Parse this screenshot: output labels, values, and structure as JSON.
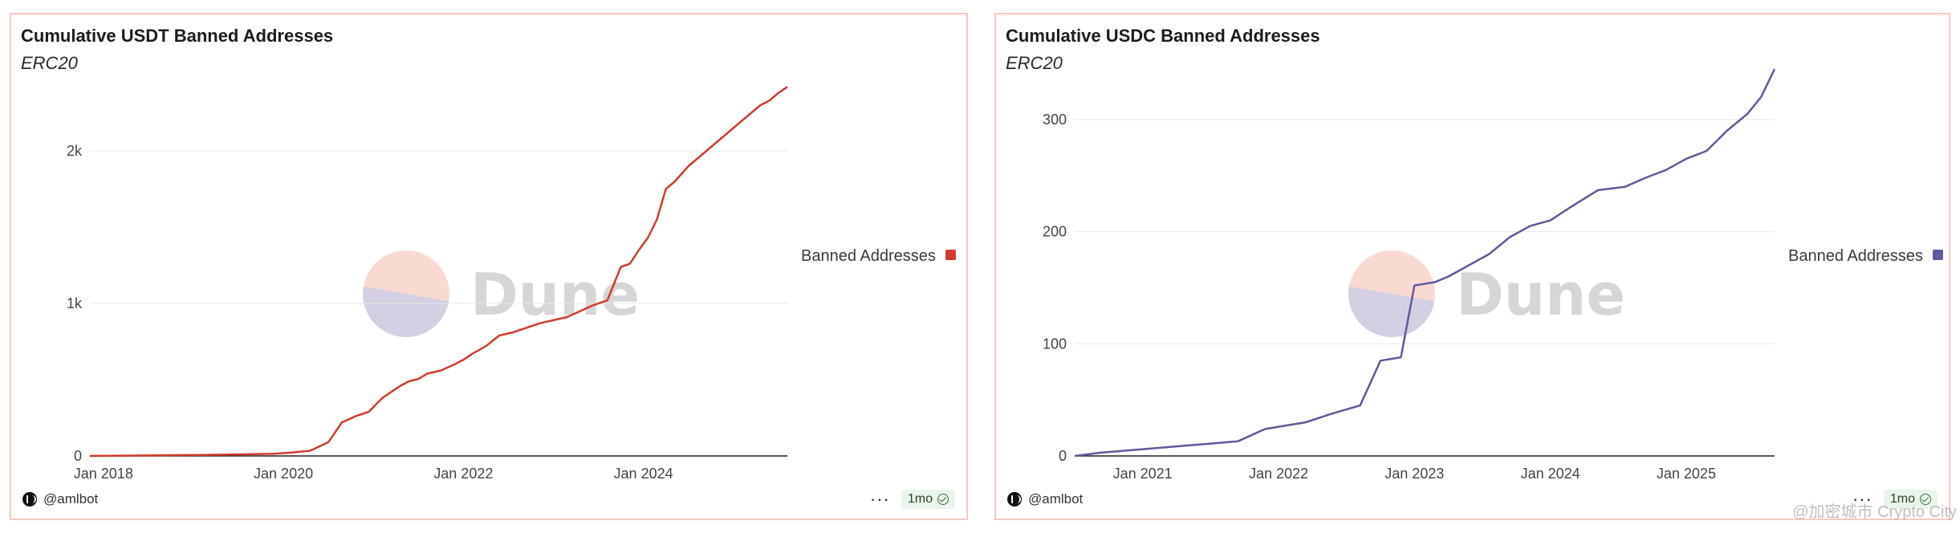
{
  "chart_data": [
    {
      "type": "line",
      "title": "Cumulative USDT Banned Addresses",
      "subtitle": "ERC20",
      "xlabel": "",
      "ylabel": "",
      "x_ticks": [
        "Jan 2018",
        "Jan 2020",
        "Jan 2022",
        "Jan 2024"
      ],
      "x_tick_values": [
        2018.0,
        2020.0,
        2022.0,
        2024.0
      ],
      "y_ticks": [
        "0",
        "1k",
        "2k"
      ],
      "y_tick_values": [
        0,
        1000,
        2000
      ],
      "xlim": [
        2017.85,
        2025.6
      ],
      "ylim": [
        0,
        2500
      ],
      "grid": true,
      "legend_position": "right",
      "series": [
        {
          "name": "Banned Addresses",
          "color": "#d13b2e",
          "x": [
            2017.85,
            2018.5,
            2019.0,
            2019.5,
            2019.9,
            2020.1,
            2020.3,
            2020.5,
            2020.65,
            2020.8,
            2020.95,
            2021.1,
            2021.2,
            2021.3,
            2021.4,
            2021.5,
            2021.6,
            2021.75,
            2021.9,
            2022.0,
            2022.1,
            2022.25,
            2022.4,
            2022.55,
            2022.7,
            2022.85,
            2023.0,
            2023.15,
            2023.3,
            2023.45,
            2023.6,
            2023.75,
            2023.85,
            2023.95,
            2024.05,
            2024.15,
            2024.25,
            2024.35,
            2024.5,
            2024.6,
            2024.7,
            2024.8,
            2024.9,
            2025.0,
            2025.1,
            2025.2,
            2025.3,
            2025.4,
            2025.5,
            2025.6
          ],
          "y": [
            0,
            3,
            6,
            10,
            14,
            22,
            35,
            90,
            220,
            260,
            290,
            380,
            420,
            460,
            490,
            505,
            540,
            560,
            600,
            630,
            670,
            720,
            790,
            810,
            840,
            870,
            890,
            910,
            950,
            990,
            1020,
            1240,
            1260,
            1350,
            1430,
            1550,
            1750,
            1800,
            1900,
            1950,
            2000,
            2050,
            2100,
            2150,
            2200,
            2250,
            2300,
            2330,
            2380,
            2420
          ]
        }
      ]
    },
    {
      "type": "line",
      "title": "Cumulative USDC Banned Addresses",
      "subtitle": "ERC20",
      "xlabel": "",
      "ylabel": "",
      "x_ticks": [
        "Jan 2021",
        "Jan 2022",
        "Jan 2023",
        "Jan 2024",
        "Jan 2025"
      ],
      "x_tick_values": [
        2021.0,
        2022.0,
        2023.0,
        2024.0,
        2025.0
      ],
      "y_ticks": [
        "0",
        "100",
        "200",
        "300"
      ],
      "y_tick_values": [
        0,
        100,
        200,
        300
      ],
      "xlim": [
        2020.5,
        2025.65
      ],
      "ylim": [
        0,
        340
      ],
      "grid": true,
      "legend_position": "right",
      "series": [
        {
          "name": "Banned Addresses",
          "color": "#5f5a9c",
          "x": [
            2020.5,
            2020.7,
            2021.0,
            2021.3,
            2021.7,
            2021.9,
            2022.1,
            2022.2,
            2022.4,
            2022.6,
            2022.75,
            2022.9,
            2023.0,
            2023.15,
            2023.25,
            2023.4,
            2023.55,
            2023.7,
            2023.85,
            2024.0,
            2024.15,
            2024.35,
            2024.55,
            2024.7,
            2024.85,
            2025.0,
            2025.15,
            2025.3,
            2025.45,
            2025.55,
            2025.65
          ],
          "y": [
            0,
            3,
            6,
            9,
            13,
            24,
            28,
            30,
            38,
            45,
            85,
            88,
            152,
            155,
            160,
            170,
            180,
            195,
            205,
            210,
            222,
            237,
            240,
            248,
            255,
            265,
            272,
            290,
            305,
            320,
            345
          ]
        }
      ]
    }
  ],
  "panels": [
    {
      "title": "Cumulative USDT Banned Addresses",
      "subtitle": "ERC20",
      "legend_label": "Banned Addresses",
      "watermark": "Dune",
      "author": "@amlbot",
      "freshness": "1mo"
    },
    {
      "title": "Cumulative USDC Banned Addresses",
      "subtitle": "ERC20",
      "legend_label": "Banned Addresses",
      "watermark": "Dune",
      "author": "@amlbot",
      "freshness": "1mo"
    }
  ],
  "page_watermark": "@加密城市 Crypto City",
  "colors": {
    "panel_border": "#f6c9bf",
    "usdt_line": "#d13b2e",
    "usdc_line": "#5f5a9c",
    "grid": "#e6e6e6",
    "axis": "#222222"
  }
}
